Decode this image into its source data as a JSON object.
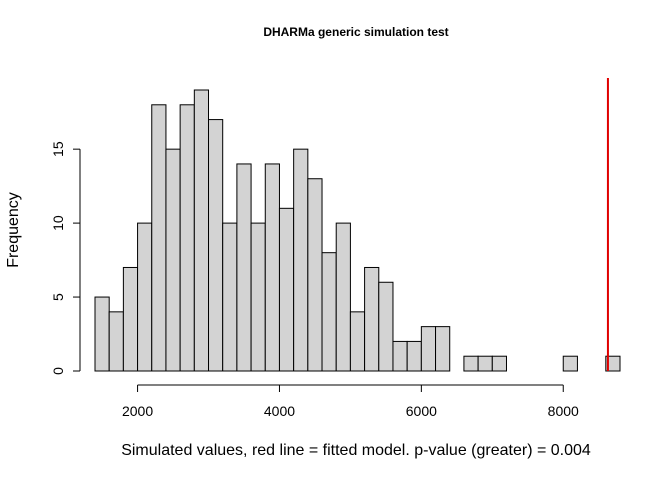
{
  "chart_data": {
    "type": "bar",
    "title": "DHARMa generic simulation test",
    "xlabel": "Simulated values, red line = fitted model. p-value (greater) = 0.004",
    "ylabel": "Frequency",
    "bin_width": 200,
    "bins_start": 1400,
    "values": [
      5,
      4,
      7,
      10,
      18,
      15,
      18,
      19,
      17,
      10,
      14,
      10,
      14,
      11,
      15,
      13,
      8,
      10,
      4,
      7,
      6,
      2,
      2,
      3,
      3,
      0,
      1,
      1,
      1,
      0,
      0,
      0,
      0,
      1,
      0,
      0,
      1
    ],
    "xlim": [
      1400,
      8800
    ],
    "ylim": [
      0,
      19
    ],
    "x_ticks": [
      2000,
      4000,
      6000,
      8000
    ],
    "x_tick_labels": [
      "2000",
      "4000",
      "6000",
      "8000"
    ],
    "y_ticks": [
      0,
      5,
      10,
      15
    ],
    "y_tick_labels": [
      "0",
      "5",
      "10",
      "15"
    ],
    "fitted_value": 8630,
    "fitted_line_color": "#e00000",
    "bar_color": "#d3d3d3"
  }
}
